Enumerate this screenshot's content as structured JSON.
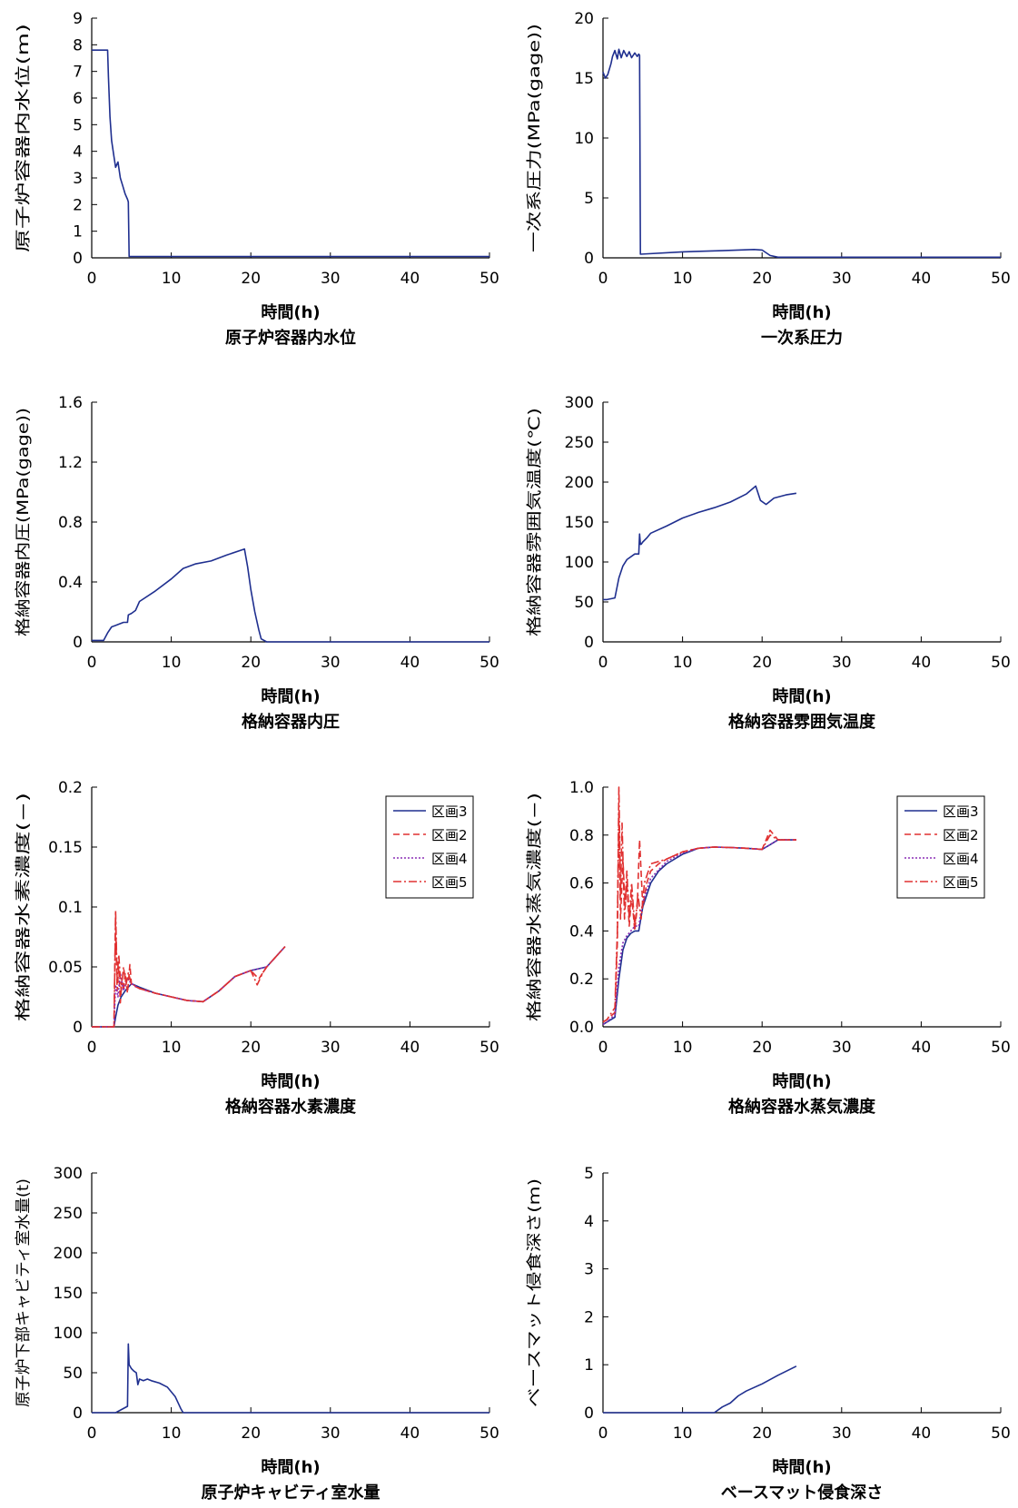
{
  "chart_data": [
    {
      "type": "line",
      "xlabel": "時間(h)",
      "ylabel": "原子炉容器内水位(m)",
      "caption": "原子炉容器内水位",
      "xlim": [
        0,
        50
      ],
      "xticks": [
        0,
        10,
        20,
        30,
        40,
        50
      ],
      "ylim": [
        0,
        9
      ],
      "yticks": [
        0,
        1,
        2,
        3,
        4,
        5,
        6,
        7,
        8,
        9
      ],
      "ytick_labels": [
        "0",
        "1",
        "2",
        "3",
        "4",
        "5",
        "6",
        "7",
        "8",
        "9"
      ],
      "series": [
        {
          "color": "#1f2f8f",
          "dash": "",
          "x": [
            0,
            2.0,
            2.1,
            2.3,
            2.5,
            2.8,
            3.0,
            3.3,
            3.6,
            3.9,
            4.2,
            4.5,
            4.6,
            4.7,
            5,
            50
          ],
          "y": [
            7.8,
            7.8,
            6.8,
            5.3,
            4.4,
            3.8,
            3.4,
            3.6,
            3.0,
            2.7,
            2.4,
            2.2,
            2.1,
            0.05,
            0.05,
            0.05
          ]
        }
      ]
    },
    {
      "type": "line",
      "xlabel": "時間(h)",
      "ylabel": "一次系圧力(MPa(gage))",
      "caption": "一次系圧力",
      "xlim": [
        0,
        50
      ],
      "xticks": [
        0,
        10,
        20,
        30,
        40,
        50
      ],
      "ylim": [
        0,
        20
      ],
      "yticks": [
        0,
        5,
        10,
        15,
        20
      ],
      "ytick_labels": [
        "0",
        "5",
        "10",
        "15",
        "20"
      ],
      "series": [
        {
          "color": "#1f2f8f",
          "dash": "",
          "x": [
            0,
            0.3,
            0.6,
            1.0,
            1.2,
            1.5,
            1.8,
            2.0,
            2.3,
            2.6,
            3.0,
            3.3,
            3.6,
            4.0,
            4.3,
            4.5,
            4.6,
            4.7,
            10,
            15,
            19,
            20,
            21,
            22,
            50
          ],
          "y": [
            15.5,
            15.0,
            15.3,
            16.2,
            16.8,
            17.3,
            16.6,
            17.4,
            16.7,
            17.3,
            16.8,
            17.2,
            16.7,
            17.1,
            16.8,
            17.0,
            16.9,
            0.3,
            0.5,
            0.6,
            0.7,
            0.65,
            0.2,
            0.05,
            0.05
          ]
        }
      ]
    },
    {
      "type": "line",
      "xlabel": "時間(h)",
      "ylabel": "格納容器内圧(MPa(gage))",
      "caption": "格納容器内圧",
      "xlim": [
        0,
        50
      ],
      "xticks": [
        0,
        10,
        20,
        30,
        40,
        50
      ],
      "ylim": [
        0,
        1.6
      ],
      "yticks": [
        0,
        0.4,
        0.8,
        1.2,
        1.6
      ],
      "ytick_labels": [
        "0",
        "0.4",
        "0.8",
        "1.2",
        "1.6"
      ],
      "series": [
        {
          "color": "#1f2f8f",
          "dash": "",
          "x": [
            0,
            1.5,
            2.0,
            2.5,
            3.0,
            4.0,
            4.5,
            4.6,
            5.0,
            5.5,
            6.0,
            8,
            10,
            11.5,
            13,
            15,
            17,
            19.2,
            19.6,
            20,
            20.5,
            21,
            21.3,
            22,
            50
          ],
          "y": [
            0.01,
            0.01,
            0.06,
            0.1,
            0.11,
            0.13,
            0.13,
            0.18,
            0.19,
            0.21,
            0.27,
            0.34,
            0.42,
            0.49,
            0.52,
            0.54,
            0.58,
            0.62,
            0.5,
            0.35,
            0.2,
            0.08,
            0.02,
            0.0,
            0.0
          ]
        }
      ]
    },
    {
      "type": "line",
      "xlabel": "時間(h)",
      "ylabel": "格納容器雰囲気温度(℃)",
      "caption": "格納容器雰囲気温度",
      "xlim": [
        0,
        50
      ],
      "xticks": [
        0,
        10,
        20,
        30,
        40,
        50
      ],
      "ylim": [
        0,
        300
      ],
      "yticks": [
        0,
        50,
        100,
        150,
        200,
        250,
        300
      ],
      "ytick_labels": [
        "0",
        "50",
        "100",
        "150",
        "200",
        "250",
        "300"
      ],
      "series": [
        {
          "color": "#1f2f8f",
          "dash": "",
          "x": [
            0,
            0.5,
            1.5,
            2.0,
            2.5,
            3.0,
            4.0,
            4.5,
            4.6,
            4.7,
            4.8,
            5.0,
            5.5,
            6,
            8,
            10,
            12,
            14,
            16,
            18,
            19.2,
            19.8,
            20.5,
            21.5,
            23,
            24.3
          ],
          "y": [
            53,
            53,
            55,
            80,
            95,
            103,
            110,
            110,
            135,
            122,
            122,
            125,
            130,
            136,
            145,
            155,
            162,
            168,
            175,
            185,
            195,
            177,
            172,
            180,
            184,
            186
          ]
        }
      ]
    },
    {
      "type": "line",
      "xlabel": "時間(h)",
      "ylabel": "格納容器水素濃度(−)",
      "caption": "格納容器水素濃度",
      "xlim": [
        0,
        50
      ],
      "xticks": [
        0,
        10,
        20,
        30,
        40,
        50
      ],
      "ylim": [
        0,
        0.2
      ],
      "yticks": [
        0,
        0.05,
        0.1,
        0.15,
        0.2
      ],
      "ytick_labels": [
        "0",
        "0.05",
        "0.1",
        "0.15",
        "0.2"
      ],
      "legend": {
        "position": "top-right"
      },
      "series": [
        {
          "name": "区画3",
          "color": "#1f2f8f",
          "dash": "",
          "x": [
            0,
            2.8,
            3.0,
            3.3,
            3.7,
            4.2,
            5.0,
            6,
            8,
            10,
            12,
            14,
            16,
            18,
            20,
            22,
            24.3
          ],
          "y": [
            0,
            0,
            0.008,
            0.018,
            0.025,
            0.03,
            0.036,
            0.033,
            0.028,
            0.025,
            0.022,
            0.021,
            0.03,
            0.042,
            0.047,
            0.05,
            0.067
          ]
        },
        {
          "name": "区画2",
          "color": "#e03030",
          "dash": "7,4",
          "x": [
            0,
            2.8,
            3.0,
            3.2,
            3.4,
            3.6,
            3.8,
            4.0,
            4.2,
            4.5,
            4.8,
            5.0,
            6,
            8,
            10,
            12,
            14,
            16,
            18,
            20,
            21,
            22,
            24.3
          ],
          "y": [
            0,
            0,
            0.09,
            0.03,
            0.05,
            0.02,
            0.04,
            0.03,
            0.045,
            0.028,
            0.052,
            0.035,
            0.032,
            0.028,
            0.025,
            0.022,
            0.021,
            0.03,
            0.042,
            0.047,
            0.04,
            0.05,
            0.067
          ]
        },
        {
          "name": "区画4",
          "color": "#8b2fb5",
          "dash": "2,2",
          "x": [
            0,
            2.8,
            3.0,
            3.3,
            3.6,
            4.0,
            4.5,
            5.0,
            6,
            8,
            10,
            12,
            14,
            16,
            18,
            20,
            22,
            24.3
          ],
          "y": [
            0,
            0,
            0.035,
            0.025,
            0.045,
            0.03,
            0.04,
            0.036,
            0.032,
            0.028,
            0.025,
            0.022,
            0.021,
            0.03,
            0.042,
            0.047,
            0.05,
            0.067
          ]
        },
        {
          "name": "区画5",
          "color": "#e03030",
          "dash": "9,3,2,3",
          "x": [
            0,
            2.8,
            3.0,
            3.2,
            3.4,
            3.7,
            4.0,
            4.3,
            4.6,
            5.0,
            6,
            8,
            10,
            12,
            14,
            16,
            18,
            20,
            20.8,
            21.5,
            22,
            24.3
          ],
          "y": [
            0,
            0,
            0.097,
            0.04,
            0.06,
            0.03,
            0.05,
            0.035,
            0.045,
            0.036,
            0.032,
            0.028,
            0.025,
            0.022,
            0.021,
            0.03,
            0.042,
            0.047,
            0.035,
            0.045,
            0.05,
            0.067
          ]
        }
      ]
    },
    {
      "type": "line",
      "xlabel": "時間(h)",
      "ylabel": "格納容器水蒸気濃度(−)",
      "caption": "格納容器水蒸気濃度",
      "xlim": [
        0,
        50
      ],
      "xticks": [
        0,
        10,
        20,
        30,
        40,
        50
      ],
      "ylim": [
        0,
        1.0
      ],
      "yticks": [
        0,
        0.2,
        0.4,
        0.6,
        0.8,
        1.0
      ],
      "ytick_labels": [
        "0.0",
        "0.2",
        "0.4",
        "0.6",
        "0.8",
        "1.0"
      ],
      "legend": {
        "position": "top-right"
      },
      "series": [
        {
          "name": "区画3",
          "color": "#1f2f8f",
          "dash": "",
          "x": [
            0,
            0.5,
            1.5,
            2.0,
            2.5,
            3.0,
            3.5,
            4.0,
            4.5,
            5.0,
            5.5,
            6,
            7,
            8,
            10,
            12,
            14,
            16,
            18,
            20,
            21,
            22,
            23,
            24.3
          ],
          "y": [
            0.01,
            0.02,
            0.04,
            0.2,
            0.32,
            0.37,
            0.39,
            0.4,
            0.4,
            0.5,
            0.55,
            0.6,
            0.65,
            0.68,
            0.72,
            0.745,
            0.75,
            0.748,
            0.745,
            0.74,
            0.76,
            0.78,
            0.78,
            0.78
          ]
        },
        {
          "name": "区画2",
          "color": "#e03030",
          "dash": "7,4",
          "x": [
            0,
            0.5,
            1.5,
            1.8,
            2.0,
            2.2,
            2.5,
            2.8,
            3.0,
            3.3,
            3.6,
            4.0,
            4.3,
            4.6,
            5.0,
            5.5,
            6,
            7,
            8,
            10,
            12,
            14,
            16,
            18,
            20,
            21,
            22,
            24.3
          ],
          "y": [
            0.02,
            0.03,
            0.06,
            0.35,
            0.9,
            0.45,
            0.7,
            0.5,
            0.6,
            0.42,
            0.55,
            0.4,
            0.5,
            0.78,
            0.5,
            0.6,
            0.65,
            0.68,
            0.7,
            0.73,
            0.745,
            0.75,
            0.748,
            0.745,
            0.74,
            0.82,
            0.78,
            0.78
          ]
        },
        {
          "name": "区画4",
          "color": "#8b2fb5",
          "dash": "2,2",
          "x": [
            0,
            0.5,
            1.5,
            2.0,
            2.5,
            3.0,
            3.5,
            4.0,
            4.5,
            5.0,
            6,
            8,
            10,
            12,
            14,
            16,
            18,
            20,
            22,
            24.3
          ],
          "y": [
            0.01,
            0.02,
            0.05,
            0.25,
            0.35,
            0.38,
            0.4,
            0.42,
            0.42,
            0.52,
            0.62,
            0.69,
            0.725,
            0.745,
            0.75,
            0.748,
            0.745,
            0.74,
            0.78,
            0.78
          ]
        },
        {
          "name": "区画5",
          "color": "#e03030",
          "dash": "9,3,2,3",
          "x": [
            0,
            0.5,
            1.5,
            1.8,
            2.0,
            2.2,
            2.4,
            2.7,
            3.0,
            3.3,
            3.6,
            4.0,
            4.4,
            4.8,
            5.2,
            6,
            8,
            10,
            12,
            14,
            16,
            18,
            20,
            21,
            22,
            24.3
          ],
          "y": [
            0.02,
            0.03,
            0.08,
            0.4,
            1.0,
            0.55,
            0.85,
            0.45,
            0.65,
            0.45,
            0.6,
            0.42,
            0.55,
            0.45,
            0.6,
            0.68,
            0.7,
            0.73,
            0.745,
            0.75,
            0.748,
            0.745,
            0.74,
            0.8,
            0.78,
            0.78
          ]
        }
      ]
    },
    {
      "type": "line",
      "xlabel": "時間(h)",
      "ylabel": "原子炉下部キャビティ室水量(t)",
      "caption": "原子炉キャビティ室水量",
      "xlim": [
        0,
        50
      ],
      "xticks": [
        0,
        10,
        20,
        30,
        40,
        50
      ],
      "ylim": [
        0,
        300
      ],
      "yticks": [
        0,
        50,
        100,
        150,
        200,
        250,
        300
      ],
      "ytick_labels": [
        "0",
        "50",
        "100",
        "150",
        "200",
        "250",
        "300"
      ],
      "series": [
        {
          "color": "#1f2f8f",
          "dash": "",
          "x": [
            0,
            3.0,
            4.5,
            4.6,
            4.7,
            5.0,
            5.3,
            5.6,
            5.8,
            6.0,
            6.5,
            7.0,
            7.5,
            8.5,
            9.5,
            10.5,
            11.2,
            11.5,
            12,
            50
          ],
          "y": [
            0,
            0,
            8,
            86,
            60,
            55,
            52,
            50,
            35,
            42,
            40,
            42,
            40,
            37,
            32,
            20,
            5,
            0,
            0,
            0
          ]
        }
      ]
    },
    {
      "type": "line",
      "xlabel": "時間(h)",
      "ylabel": "ベースマット侵食深さ(m)",
      "caption": "ベースマット侵食深さ",
      "xlim": [
        0,
        50
      ],
      "xticks": [
        0,
        10,
        20,
        30,
        40,
        50
      ],
      "ylim": [
        0,
        5
      ],
      "yticks": [
        0,
        1,
        2,
        3,
        4,
        5
      ],
      "ytick_labels": [
        "0",
        "1",
        "2",
        "3",
        "4",
        "5"
      ],
      "series": [
        {
          "color": "#1f2f8f",
          "dash": "",
          "x": [
            0,
            14,
            15,
            16,
            17,
            18,
            20,
            22,
            24.3
          ],
          "y": [
            0,
            0,
            0.12,
            0.2,
            0.35,
            0.45,
            0.6,
            0.78,
            0.97
          ]
        }
      ]
    }
  ]
}
